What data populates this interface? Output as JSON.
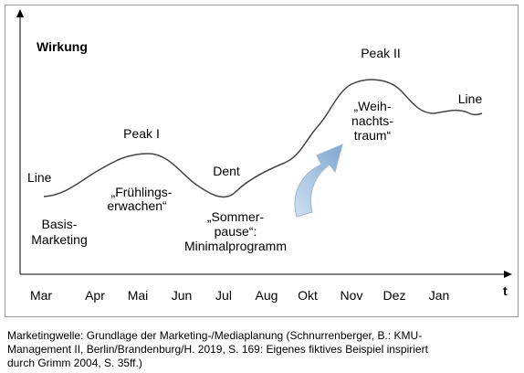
{
  "diagram": {
    "y_axis_label": "Wirkung",
    "x_axis_label": "t",
    "months": [
      "Mar",
      "Apr",
      "Mai",
      "Jun",
      "Jul",
      "Aug",
      "Okt",
      "Nov",
      "Dez",
      "Jan"
    ],
    "labels": {
      "line_start": "Line",
      "basis": [
        "Basis-",
        "Marketing"
      ],
      "peak1": "Peak I",
      "fruehling": [
        "„Frühlings-",
        "erwachen“"
      ],
      "dent": "Dent",
      "sommer": [
        "„Sommer-",
        "pause“:",
        "Minimalprogramm"
      ],
      "peak2": "Peak II",
      "weihnacht": [
        "„Weih-",
        "nachts-",
        "traum“"
      ],
      "line_end": "Line"
    },
    "caption": [
      "Marketingwelle: Grundlage der Marketing-/Mediaplanung (Schnurrenberger, B.: KMU-",
      "Management II, Berlin/Brandenburg/H. 2019, S. 169: Eigenes fiktives Beispiel inspiriert",
      "durch Grimm 2004, S. 35ff.)"
    ]
  }
}
